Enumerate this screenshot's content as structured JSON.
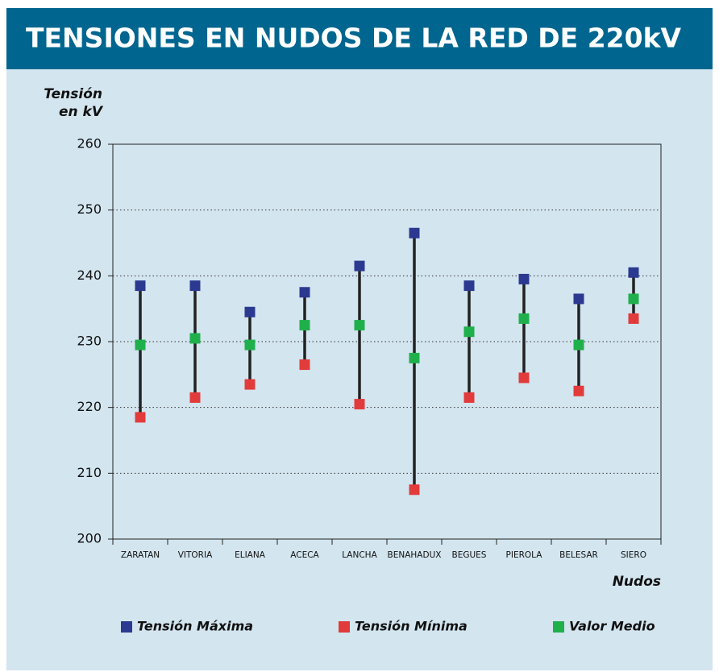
{
  "chart_data": {
    "type": "range-dot",
    "title": "TENSIONES EN NUDOS DE LA RED DE 220kV",
    "y_label": [
      "Tensión",
      "en kV"
    ],
    "x_label": "Nudos",
    "categories": [
      "ZARATAN",
      "VITORIA",
      "ELIANA",
      "ACECA",
      "LANCHA",
      "BENAHADUX",
      "BEGUES",
      "PIEROLA",
      "BELESAR",
      "SIERO"
    ],
    "series": [
      {
        "name": "Tensión Máxima",
        "color": "#2b3990",
        "values": [
          238.5,
          238.5,
          234.5,
          237.5,
          241.5,
          246.5,
          238.5,
          239.5,
          236.5,
          240.5
        ]
      },
      {
        "name": "Tensión Mínima",
        "color": "#e23b3b",
        "values": [
          218.5,
          221.5,
          223.5,
          226.5,
          220.5,
          207.5,
          221.5,
          224.5,
          222.5,
          233.5
        ]
      },
      {
        "name": "Valor Medio",
        "color": "#1fb04c",
        "values": [
          229.5,
          230.5,
          229.5,
          232.5,
          232.5,
          227.5,
          231.5,
          233.5,
          229.5,
          236.5
        ]
      }
    ],
    "ylim": [
      200,
      260
    ],
    "yticks": [
      200,
      210,
      220,
      230,
      240,
      250,
      260
    ],
    "grid": true,
    "legend": "bottom"
  }
}
